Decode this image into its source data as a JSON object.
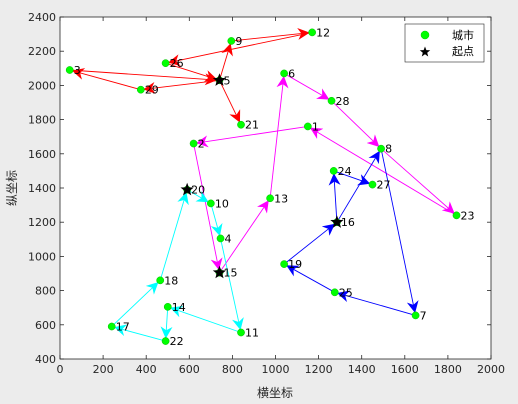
{
  "chart_data": {
    "type": "scatter",
    "xlabel": "横坐标",
    "ylabel": "纵坐标",
    "xlim": [
      0,
      2000
    ],
    "ylim": [
      400,
      2400
    ],
    "xticks": [
      0,
      200,
      400,
      600,
      800,
      1000,
      1200,
      1400,
      1600,
      1800,
      2000
    ],
    "yticks": [
      400,
      600,
      800,
      1000,
      1200,
      1400,
      1600,
      1800,
      2000,
      2200,
      2400
    ],
    "grid": false,
    "legend_position": "top-right",
    "legend": [
      {
        "label": "城市",
        "marker": "circle",
        "color": "#00ff00"
      },
      {
        "label": "起点",
        "marker": "star",
        "color": "#000000"
      }
    ],
    "cities": [
      {
        "id": "9",
        "x": 795,
        "y": 2260
      },
      {
        "id": "12",
        "x": 1170,
        "y": 2310
      },
      {
        "id": "26",
        "x": 490,
        "y": 2130
      },
      {
        "id": "5",
        "x": 740,
        "y": 2030
      },
      {
        "id": "29",
        "x": 375,
        "y": 1975
      },
      {
        "id": "3",
        "x": 45,
        "y": 2090
      },
      {
        "id": "21",
        "x": 840,
        "y": 1770
      },
      {
        "id": "6",
        "x": 1040,
        "y": 2070
      },
      {
        "id": "28",
        "x": 1260,
        "y": 1910
      },
      {
        "id": "1",
        "x": 1150,
        "y": 1760
      },
      {
        "id": "2",
        "x": 620,
        "y": 1660
      },
      {
        "id": "8",
        "x": 1490,
        "y": 1630
      },
      {
        "id": "24",
        "x": 1270,
        "y": 1500
      },
      {
        "id": "27",
        "x": 1450,
        "y": 1420
      },
      {
        "id": "23",
        "x": 1840,
        "y": 1240
      },
      {
        "id": "20",
        "x": 590,
        "y": 1390
      },
      {
        "id": "10",
        "x": 700,
        "y": 1310
      },
      {
        "id": "13",
        "x": 975,
        "y": 1340
      },
      {
        "id": "4",
        "x": 745,
        "y": 1105
      },
      {
        "id": "16",
        "x": 1285,
        "y": 1200
      },
      {
        "id": "19",
        "x": 1040,
        "y": 955
      },
      {
        "id": "15",
        "x": 740,
        "y": 905
      },
      {
        "id": "18",
        "x": 465,
        "y": 860
      },
      {
        "id": "25",
        "x": 1275,
        "y": 790
      },
      {
        "id": "14",
        "x": 500,
        "y": 705
      },
      {
        "id": "7",
        "x": 1650,
        "y": 655
      },
      {
        "id": "17",
        "x": 240,
        "y": 590
      },
      {
        "id": "11",
        "x": 840,
        "y": 555
      },
      {
        "id": "22",
        "x": 490,
        "y": 505
      }
    ],
    "starts": [
      {
        "x": 740,
        "y": 2030
      },
      {
        "x": 590,
        "y": 1390
      },
      {
        "x": 1285,
        "y": 1200
      },
      {
        "x": 740,
        "y": 905
      }
    ],
    "routes": [
      {
        "color": "#ff0000",
        "path": [
          "5",
          "9",
          "12",
          "26",
          "5",
          "29",
          "3",
          "5",
          "21"
        ]
      },
      {
        "color": "#ff00ff",
        "path": [
          "15",
          "13",
          "6",
          "28",
          "8",
          "23",
          "1",
          "2",
          "15"
        ]
      },
      {
        "color": "#0000ff",
        "path": [
          "16",
          "8",
          "7",
          "25",
          "19",
          "16",
          "24",
          "27"
        ]
      },
      {
        "color": "#00ffff",
        "path": [
          "20",
          "10",
          "4",
          "11",
          "14",
          "22",
          "17",
          "18",
          "20"
        ]
      }
    ]
  }
}
